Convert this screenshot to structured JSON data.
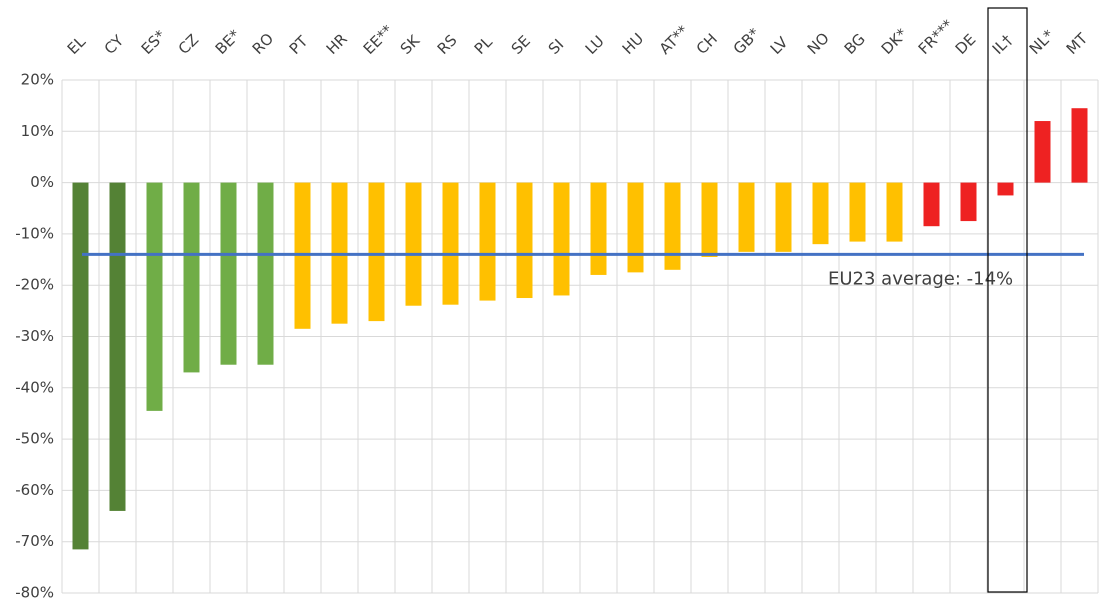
{
  "chart_data": {
    "type": "bar",
    "categories": [
      "EL",
      "CY",
      "ES*",
      "CZ",
      "BE*",
      "RO",
      "PT",
      "HR",
      "EE**",
      "SK",
      "RS",
      "PL",
      "SE",
      "SI",
      "LU",
      "HU",
      "AT**",
      "CH",
      "GB*",
      "LV",
      "NO",
      "BG",
      "DK*",
      "FR***",
      "DE",
      "IL†",
      "NL*",
      "MT"
    ],
    "values": [
      -71.5,
      -64,
      -44.5,
      -37,
      -35.5,
      -35.5,
      -28.5,
      -27.5,
      -27,
      -24,
      -23.8,
      -23,
      -22.5,
      -22,
      -18,
      -17.5,
      -17,
      -14.5,
      -13.5,
      -13.5,
      -12,
      -11.5,
      -11.5,
      -8.5,
      -7.5,
      -2.5,
      12,
      14.5
    ],
    "colors": [
      "#548235",
      "#548235",
      "#70ad47",
      "#70ad47",
      "#70ad47",
      "#70ad47",
      "#ffc000",
      "#ffc000",
      "#ffc000",
      "#ffc000",
      "#ffc000",
      "#ffc000",
      "#ffc000",
      "#ffc000",
      "#ffc000",
      "#ffc000",
      "#ffc000",
      "#ffc000",
      "#ffc000",
      "#ffc000",
      "#ffc000",
      "#ffc000",
      "#ffc000",
      "#ee2222",
      "#ee2222",
      "#ee2222",
      "#ee2222",
      "#ee2222"
    ],
    "ylim": [
      -80,
      20
    ],
    "yticks": [
      {
        "value": 20,
        "label": "20%"
      },
      {
        "value": 10,
        "label": "10%"
      },
      {
        "value": 0,
        "label": "0%"
      },
      {
        "value": -10,
        "label": "-10%"
      },
      {
        "value": -20,
        "label": "-20%"
      },
      {
        "value": -30,
        "label": "-30%"
      },
      {
        "value": -40,
        "label": "-40%"
      },
      {
        "value": -50,
        "label": "-50%"
      },
      {
        "value": -60,
        "label": "-60%"
      },
      {
        "value": -70,
        "label": "-70%"
      },
      {
        "value": -80,
        "label": "-80%"
      }
    ],
    "average": {
      "value": -14,
      "label": "EU23 average: -14%",
      "color": "#4472c4"
    },
    "grid": true
  }
}
